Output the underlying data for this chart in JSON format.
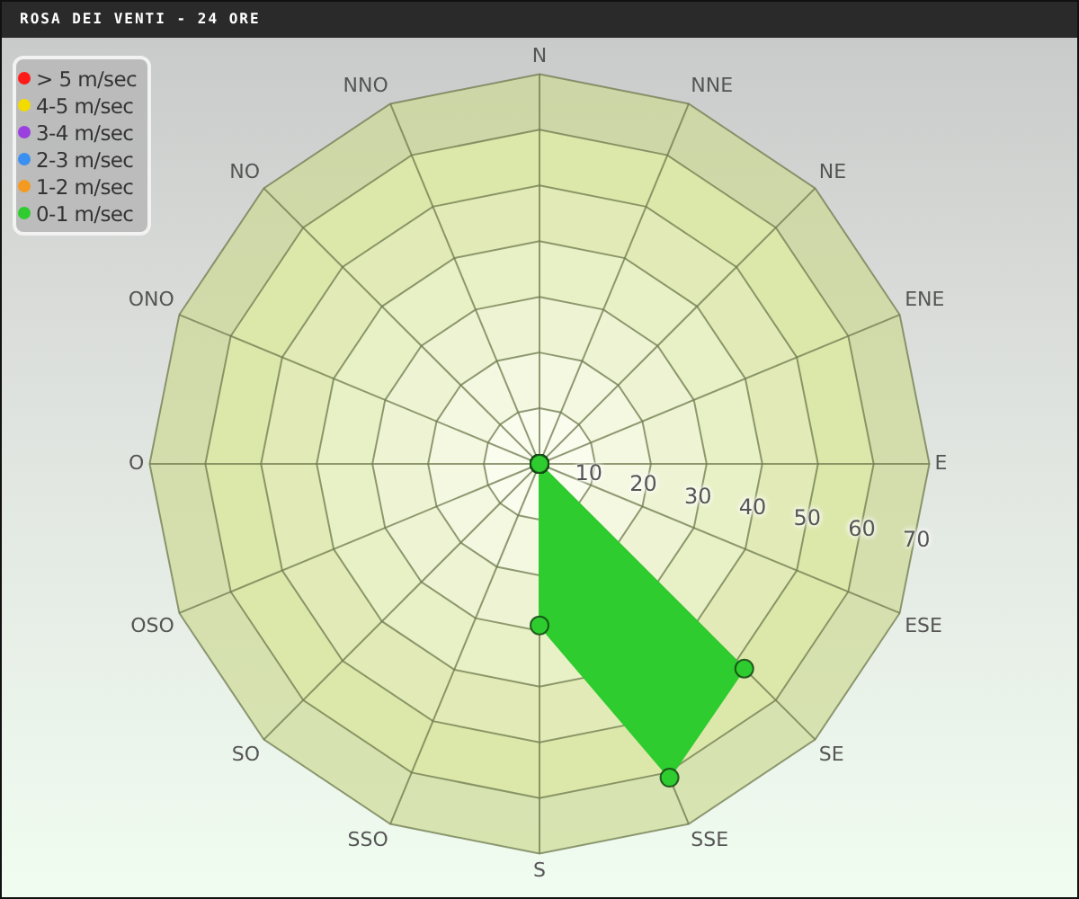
{
  "chart_data": {
    "type": "radar",
    "title": "ROSA DEI VENTI - 24 ORE",
    "categories": [
      "N",
      "NNE",
      "NE",
      "ENE",
      "E",
      "ESE",
      "SE",
      "SSE",
      "S",
      "SSO",
      "SO",
      "OSO",
      "O",
      "ONO",
      "NO",
      "NNO"
    ],
    "series": [
      {
        "name": "0-1 m/sec",
        "color": "#2ecc2e",
        "values": [
          0,
          0,
          0,
          0,
          0,
          0,
          52,
          61,
          29,
          0,
          0,
          0,
          0,
          0,
          0,
          0
        ]
      },
      {
        "name": "1-2 m/sec",
        "color": "#f59a20",
        "values": [
          null,
          null,
          null,
          null,
          null,
          null,
          null,
          null,
          null,
          null,
          null,
          null,
          null,
          null,
          null,
          null
        ]
      },
      {
        "name": "2-3 m/sec",
        "color": "#3a90f0",
        "values": [
          null,
          null,
          null,
          null,
          null,
          null,
          null,
          null,
          null,
          null,
          null,
          null,
          null,
          null,
          null,
          null
        ]
      },
      {
        "name": "3-4 m/sec",
        "color": "#9a40e0",
        "values": [
          null,
          null,
          null,
          null,
          null,
          null,
          null,
          null,
          null,
          null,
          null,
          null,
          null,
          null,
          null,
          null
        ]
      },
      {
        "name": "4-5 m/sec",
        "color": "#f2dc00",
        "values": [
          null,
          null,
          null,
          null,
          null,
          null,
          null,
          null,
          null,
          null,
          null,
          null,
          null,
          null,
          null,
          null
        ]
      },
      {
        "name": "> 5 m/sec",
        "color": "#ff1a1a",
        "values": [
          null,
          null,
          null,
          null,
          null,
          null,
          null,
          null,
          null,
          null,
          null,
          null,
          null,
          null,
          null,
          null
        ]
      }
    ],
    "ylim": [
      0,
      70
    ],
    "yticks": [
      10,
      20,
      30,
      40,
      50,
      60,
      70
    ],
    "grid": true,
    "legend": "top left",
    "marker": "circle"
  }
}
